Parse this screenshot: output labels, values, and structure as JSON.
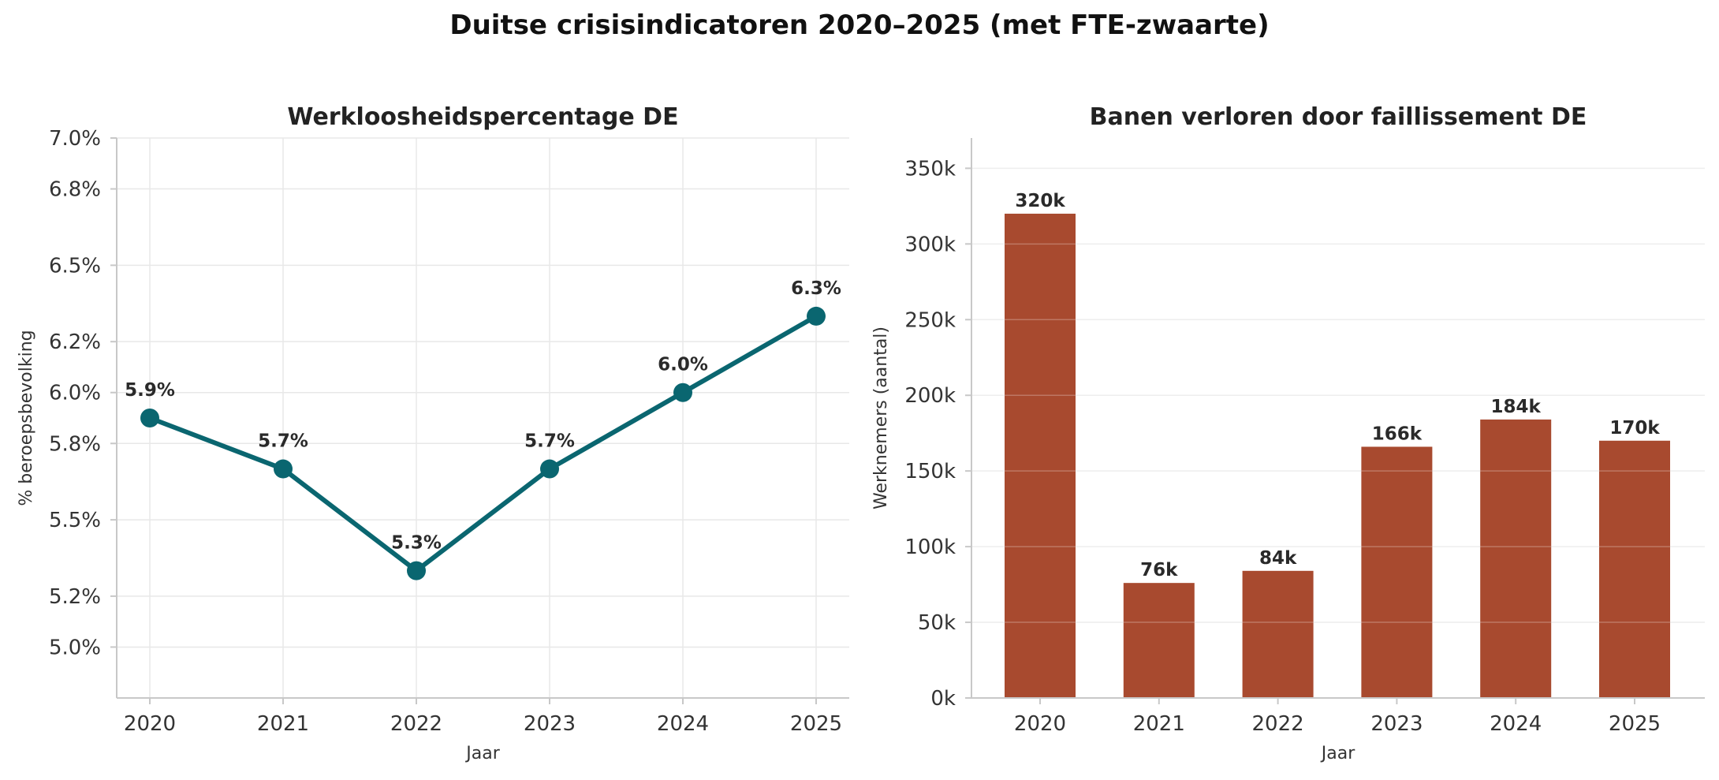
{
  "figure": {
    "title": "Duitse crisisindicatoren 2020–2025 (met FTE-zwaarte)"
  },
  "chart_data": [
    {
      "type": "line",
      "title": "Werkloosheidspercentage DE",
      "xlabel": "Jaar",
      "ylabel": "% beroepsbevolking",
      "x": [
        "2020",
        "2021",
        "2022",
        "2023",
        "2024",
        "2025"
      ],
      "values": [
        5.9,
        5.7,
        5.3,
        5.7,
        6.0,
        6.3
      ],
      "value_labels": [
        "5.9%",
        "5.7%",
        "5.3%",
        "5.7%",
        "6.0%",
        "6.3%"
      ],
      "ylim": [
        4.8,
        7.0
      ],
      "yticks": [
        5.0,
        5.2,
        5.5,
        5.8,
        6.0,
        6.2,
        6.5,
        6.8,
        7.0
      ],
      "ytick_labels": [
        "5.0%",
        "5.2%",
        "5.5%",
        "5.8%",
        "6.0%",
        "6.2%",
        "6.5%",
        "6.8%",
        "7.0%"
      ],
      "grid": true,
      "color": "#0a6670"
    },
    {
      "type": "bar",
      "title": "Banen verloren door faillissement DE",
      "xlabel": "Jaar",
      "ylabel": "Werknemers (aantal)",
      "categories": [
        "2020",
        "2021",
        "2022",
        "2023",
        "2024",
        "2025"
      ],
      "values": [
        320000,
        76000,
        84000,
        166000,
        184000,
        170000
      ],
      "value_labels": [
        "320k",
        "76k",
        "84k",
        "166k",
        "184k",
        "170k"
      ],
      "ylim": [
        0,
        370000
      ],
      "yticks": [
        0,
        50000,
        100000,
        150000,
        200000,
        250000,
        300000,
        350000
      ],
      "ytick_labels": [
        "0k",
        "50k",
        "100k",
        "150k",
        "200k",
        "250k",
        "300k",
        "350k"
      ],
      "grid": true,
      "color": "#a84a2f"
    }
  ]
}
